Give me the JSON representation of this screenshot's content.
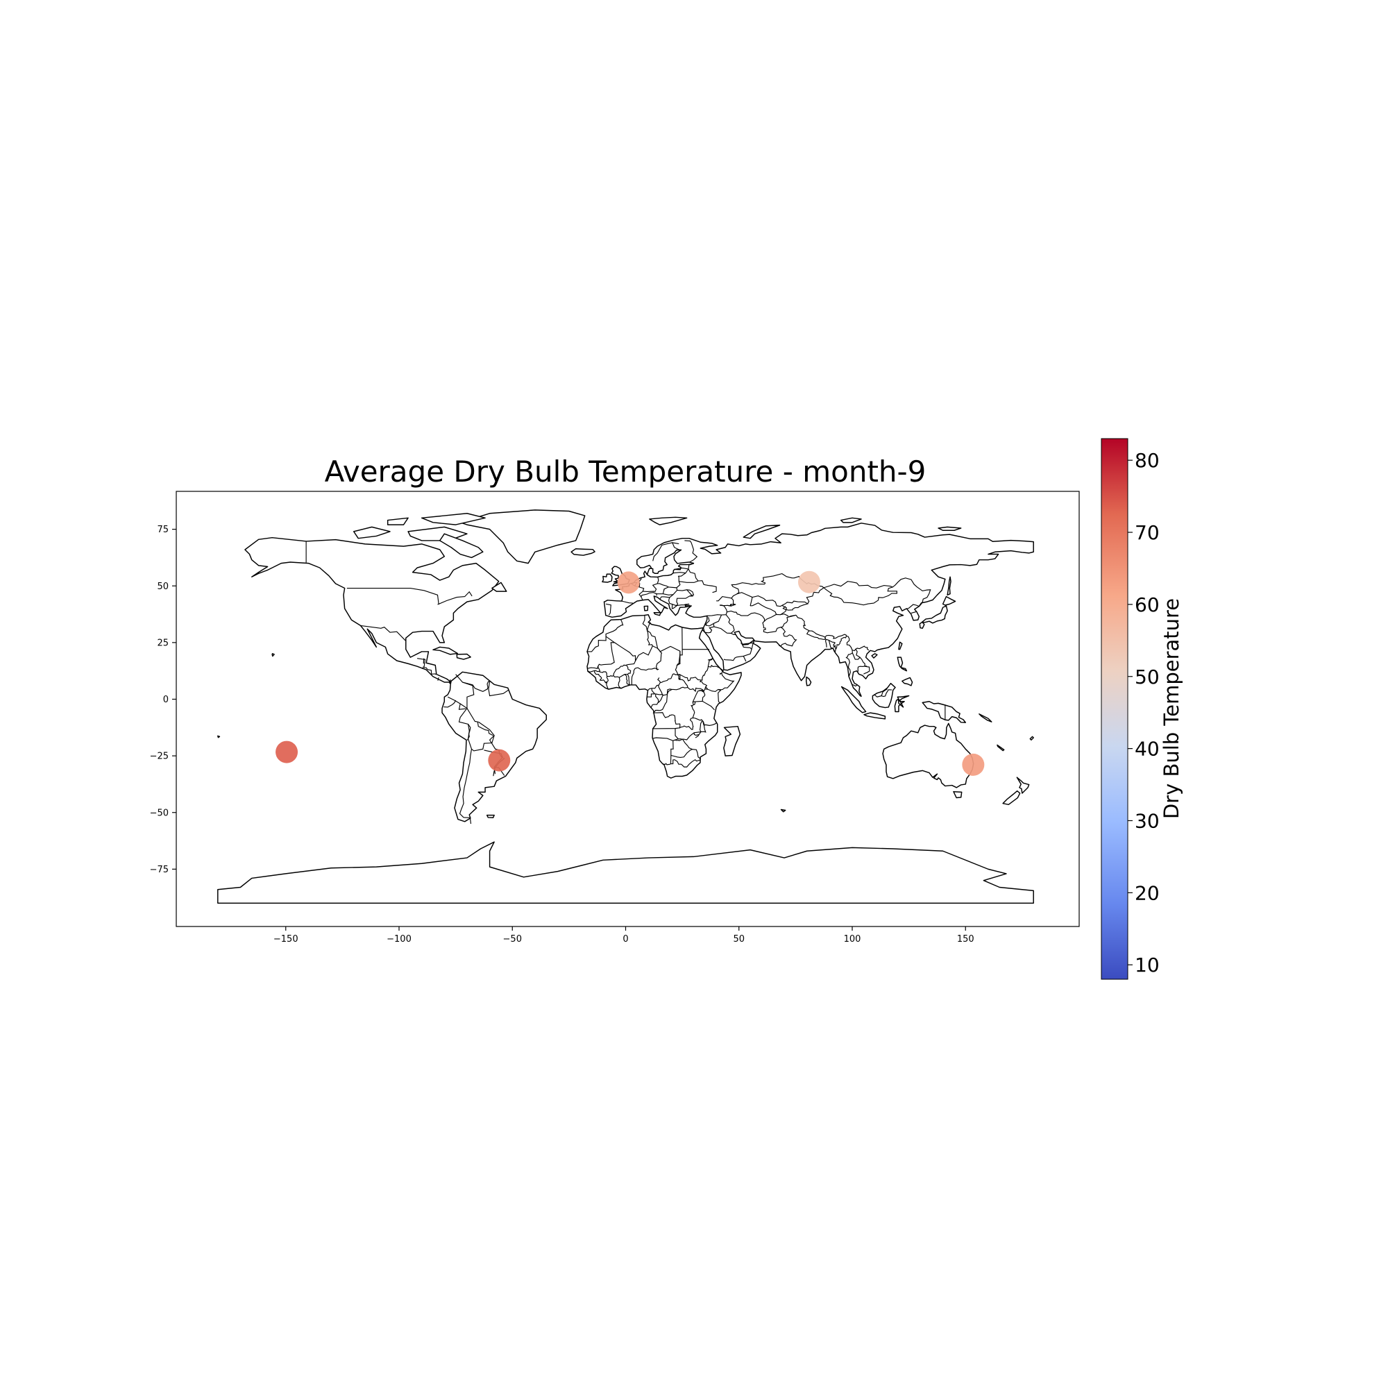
{
  "chart_data": {
    "type": "scatter",
    "title": "Average Dry Bulb Temperature - month-9",
    "xlabel": "",
    "ylabel": "",
    "xlim": [
      -198,
      198
    ],
    "ylim": [
      -98,
      93
    ],
    "x_ticks": [
      -150,
      -100,
      -50,
      0,
      50,
      100,
      150
    ],
    "x_tick_labels": [
      "−150",
      "−100",
      "−50",
      "0",
      "50",
      "100",
      "150"
    ],
    "y_ticks": [
      75,
      50,
      25,
      0,
      -25,
      -50,
      -75
    ],
    "y_tick_labels": [
      "75",
      "50",
      "25",
      "0",
      "−25",
      "−50",
      "−75"
    ],
    "grid": false,
    "basemap": "world country outlines",
    "colormap": "coolwarm",
    "colormap_stops": [
      "#3b4cc0",
      "#6788ee",
      "#9abbff",
      "#c9d7f0",
      "#edd1c2",
      "#f7a889",
      "#e26952",
      "#b40426"
    ],
    "colorbar": {
      "label": "Dry Bulb Temperature",
      "range": [
        8,
        83
      ],
      "ticks": [
        10,
        20,
        30,
        40,
        50,
        60,
        70,
        80
      ],
      "tick_labels": [
        "10",
        "20",
        "30",
        "40",
        "50",
        "60",
        "70",
        "80"
      ]
    },
    "points": [
      {
        "lon": -149.6,
        "lat": -23.3,
        "value": 73,
        "color": "#de6150"
      },
      {
        "lon": -55.8,
        "lat": -27.0,
        "value": 72,
        "color": "#e06752"
      },
      {
        "lon": 1.3,
        "lat": 51.5,
        "value": 64,
        "color": "#f4a385"
      },
      {
        "lon": 81.0,
        "lat": 51.7,
        "value": 57,
        "color": "#f3c6b0"
      },
      {
        "lon": 153.4,
        "lat": -28.9,
        "value": 64,
        "color": "#f39c80"
      }
    ]
  }
}
